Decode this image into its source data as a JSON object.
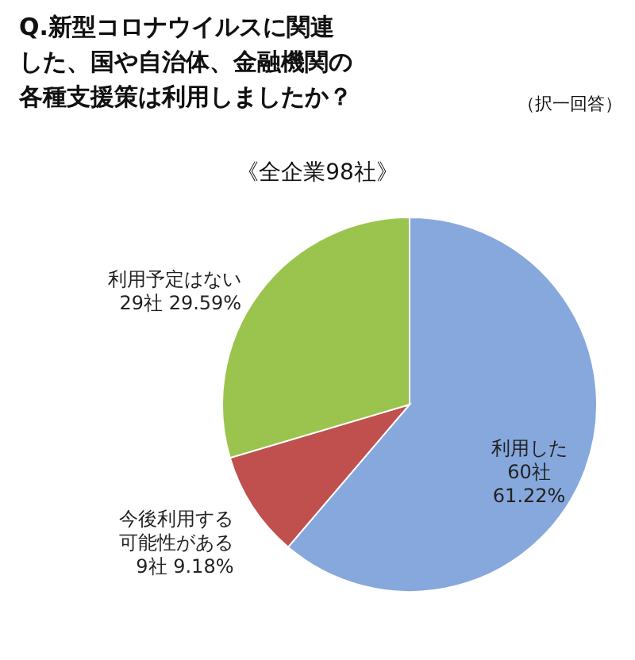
{
  "chart_data": {
    "type": "pie",
    "title": "Q.新型コロナウイルスに関連した、国や自治体、金融機関の各種支援策は利用しましたか？",
    "subtitle": "《全企業98社》",
    "annotations": [
      "（択一回答）"
    ],
    "categories": [
      "利用した",
      "今後利用する可能性がある",
      "利用予定はない"
    ],
    "values": [
      60,
      9,
      29
    ],
    "value_labels": [
      "60社\n61.22%",
      "9社 9.18%",
      "29社 29.59%"
    ],
    "colors": [
      "#86a8dc",
      "#c0504d",
      "#9bc44e"
    ]
  }
}
